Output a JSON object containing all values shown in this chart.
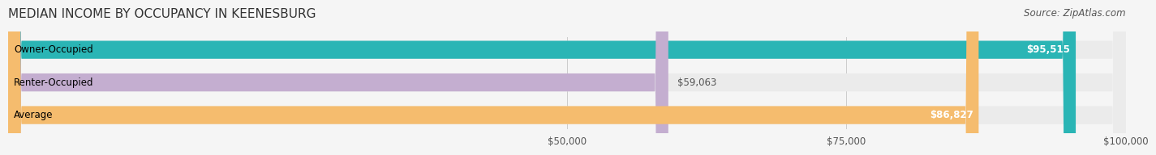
{
  "title": "MEDIAN INCOME BY OCCUPANCY IN KEENESBURG",
  "source": "Source: ZipAtlas.com",
  "categories": [
    "Owner-Occupied",
    "Renter-Occupied",
    "Average"
  ],
  "values": [
    95515,
    59063,
    86827
  ],
  "labels": [
    "$95,515",
    "$59,063",
    "$86,827"
  ],
  "bar_colors": [
    "#2ab5b5",
    "#c4aed0",
    "#f5bc6e"
  ],
  "track_color": "#ebebeb",
  "xlim": [
    0,
    100000
  ],
  "xticks": [
    50000,
    75000,
    100000
  ],
  "xtick_labels": [
    "$50,000",
    "$75,000",
    "$100,000"
  ],
  "bar_height": 0.55,
  "title_fontsize": 11,
  "label_fontsize": 8.5,
  "tick_fontsize": 8.5,
  "source_fontsize": 8.5,
  "background_color": "#f5f5f5"
}
